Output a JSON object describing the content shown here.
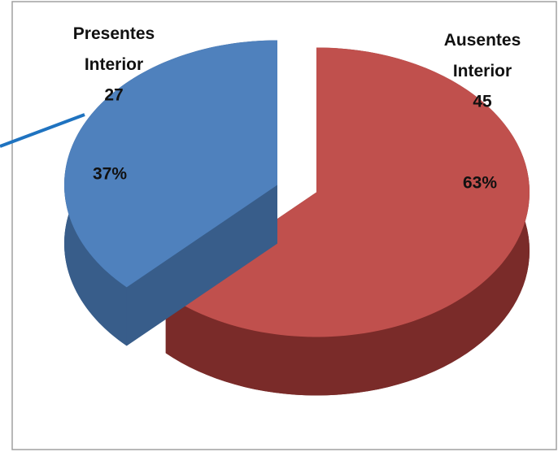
{
  "chart_data": {
    "type": "pie3d",
    "categories": [
      "Presentes Interior",
      "Ausentes Interior"
    ],
    "values": [
      27,
      45
    ],
    "percentages": [
      37,
      63
    ],
    "percentage_labels": [
      "37%",
      "63%"
    ],
    "colors": [
      "#4f81bd",
      "#c0504d"
    ],
    "side_colors": [
      "#385d8a",
      "#7a2b29"
    ]
  }
}
